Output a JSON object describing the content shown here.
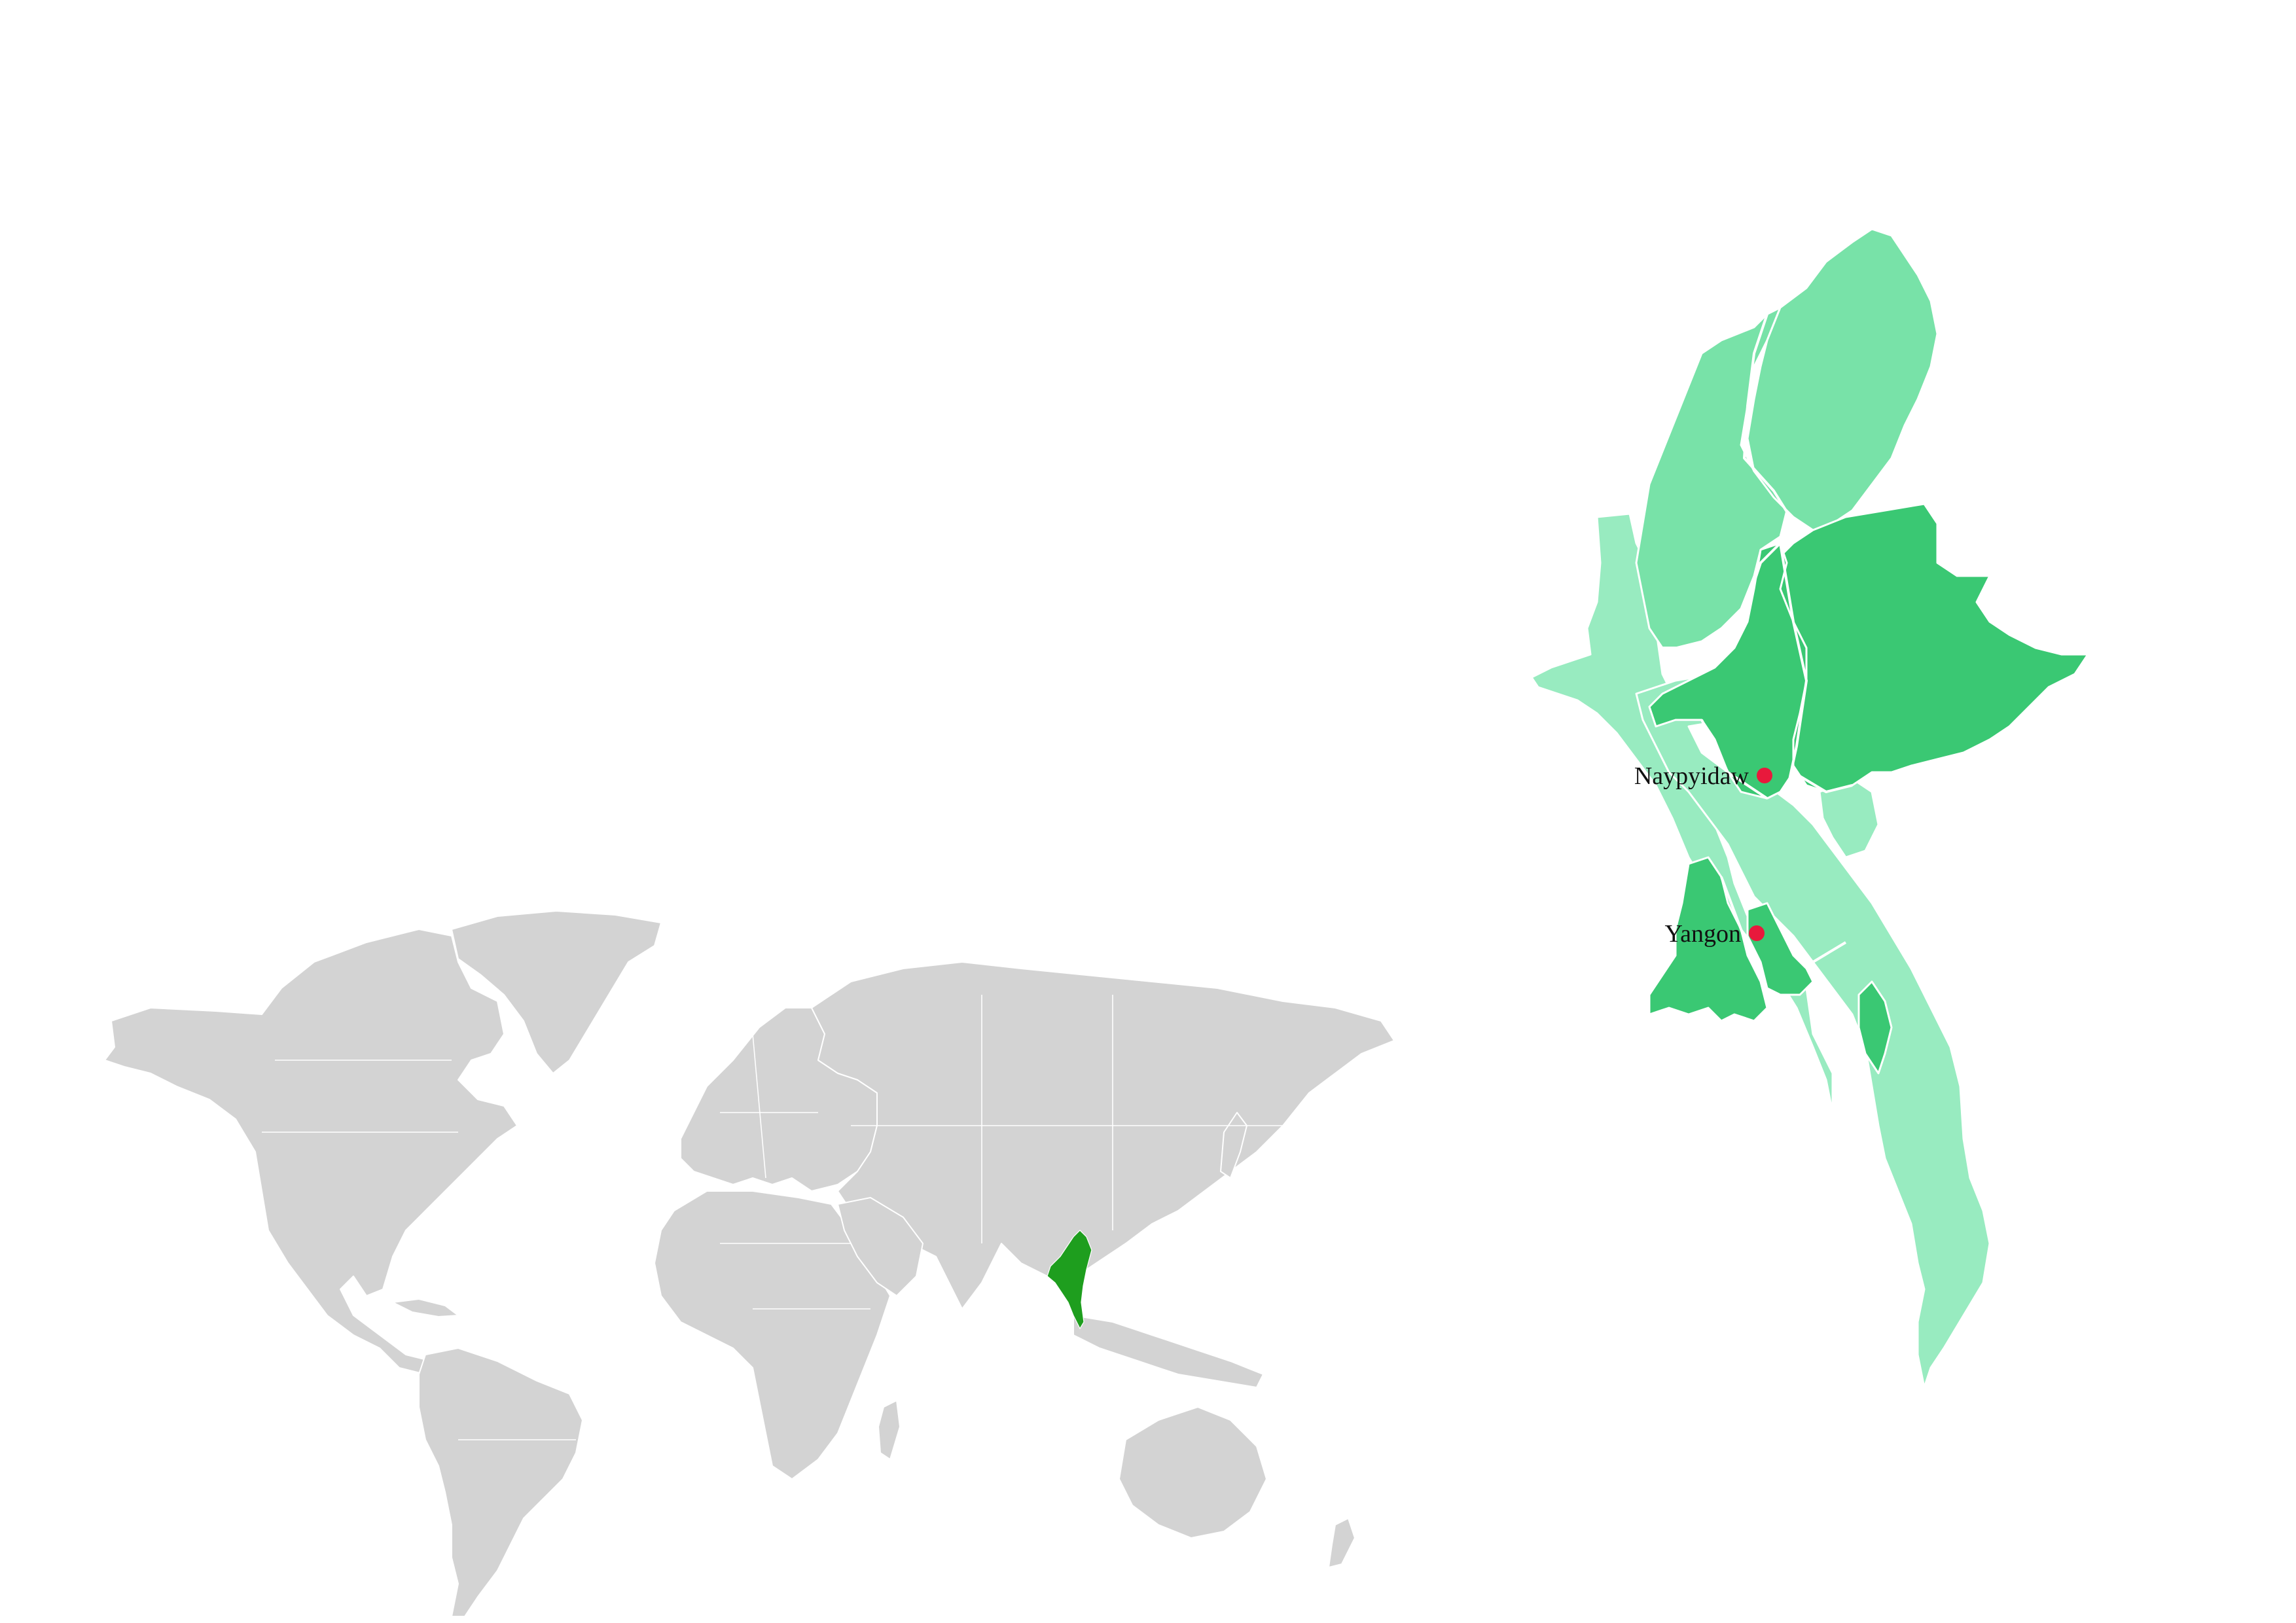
{
  "map": {
    "colors": {
      "world_land": "#d3d3d3",
      "world_borders": "#ffffff",
      "highlight_country": "#1e9e1e",
      "region_light": "#98ebc0",
      "region_medium": "#78e2a8",
      "region_dark": "#3ac873",
      "city_marker": "#e8193c"
    },
    "highlighted_country_color_key": "highlight_country",
    "cities": [
      {
        "label": "Naypyidaw"
      },
      {
        "label": "Yangon"
      }
    ]
  }
}
